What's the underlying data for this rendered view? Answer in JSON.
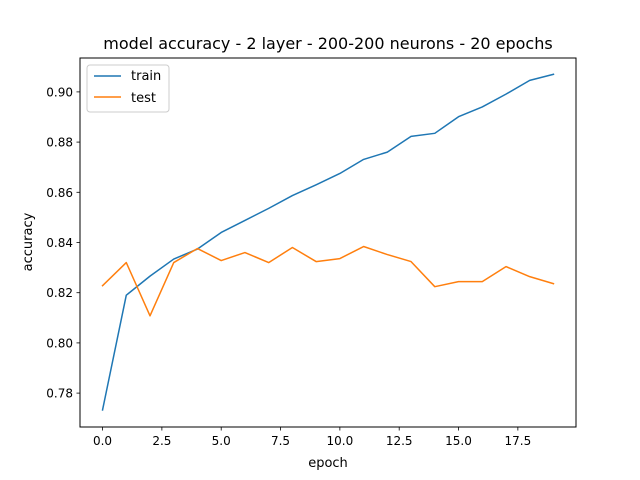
{
  "chart_data": {
    "type": "line",
    "title": "model accuracy - 2 layer - 200-200 neurons - 20 epochs",
    "xlabel": "epoch",
    "ylabel": "accuracy",
    "xlim": [
      -0.95,
      19.95
    ],
    "ylim": [
      0.7665,
      0.9135
    ],
    "xticks": [
      0.0,
      2.5,
      5.0,
      7.5,
      10.0,
      12.5,
      15.0,
      17.5
    ],
    "xtick_labels": [
      "0.0",
      "2.5",
      "5.0",
      "7.5",
      "10.0",
      "12.5",
      "15.0",
      "17.5"
    ],
    "yticks": [
      0.78,
      0.8,
      0.82,
      0.84,
      0.86,
      0.88,
      0.9
    ],
    "ytick_labels": [
      "0.78",
      "0.80",
      "0.82",
      "0.84",
      "0.86",
      "0.88",
      "0.90"
    ],
    "grid": false,
    "legend_position": "upper-left",
    "x": [
      0,
      1,
      2,
      3,
      4,
      5,
      6,
      7,
      8,
      9,
      10,
      11,
      12,
      13,
      14,
      15,
      16,
      17,
      18,
      19
    ],
    "series": [
      {
        "name": "train",
        "color": "#1f77b4",
        "values": [
          0.7733,
          0.819,
          0.8266,
          0.8334,
          0.8374,
          0.844,
          0.8488,
          0.8536,
          0.8587,
          0.863,
          0.8675,
          0.8731,
          0.876,
          0.8823,
          0.8835,
          0.8901,
          0.894,
          0.8991,
          0.9046,
          0.907
        ]
      },
      {
        "name": "test",
        "color": "#ff7f0e",
        "values": [
          0.8228,
          0.832,
          0.8108,
          0.832,
          0.8376,
          0.8328,
          0.836,
          0.832,
          0.838,
          0.8324,
          0.8336,
          0.8384,
          0.8352,
          0.8324,
          0.8224,
          0.8244,
          0.8244,
          0.8304,
          0.8264,
          0.8236
        ]
      }
    ]
  }
}
